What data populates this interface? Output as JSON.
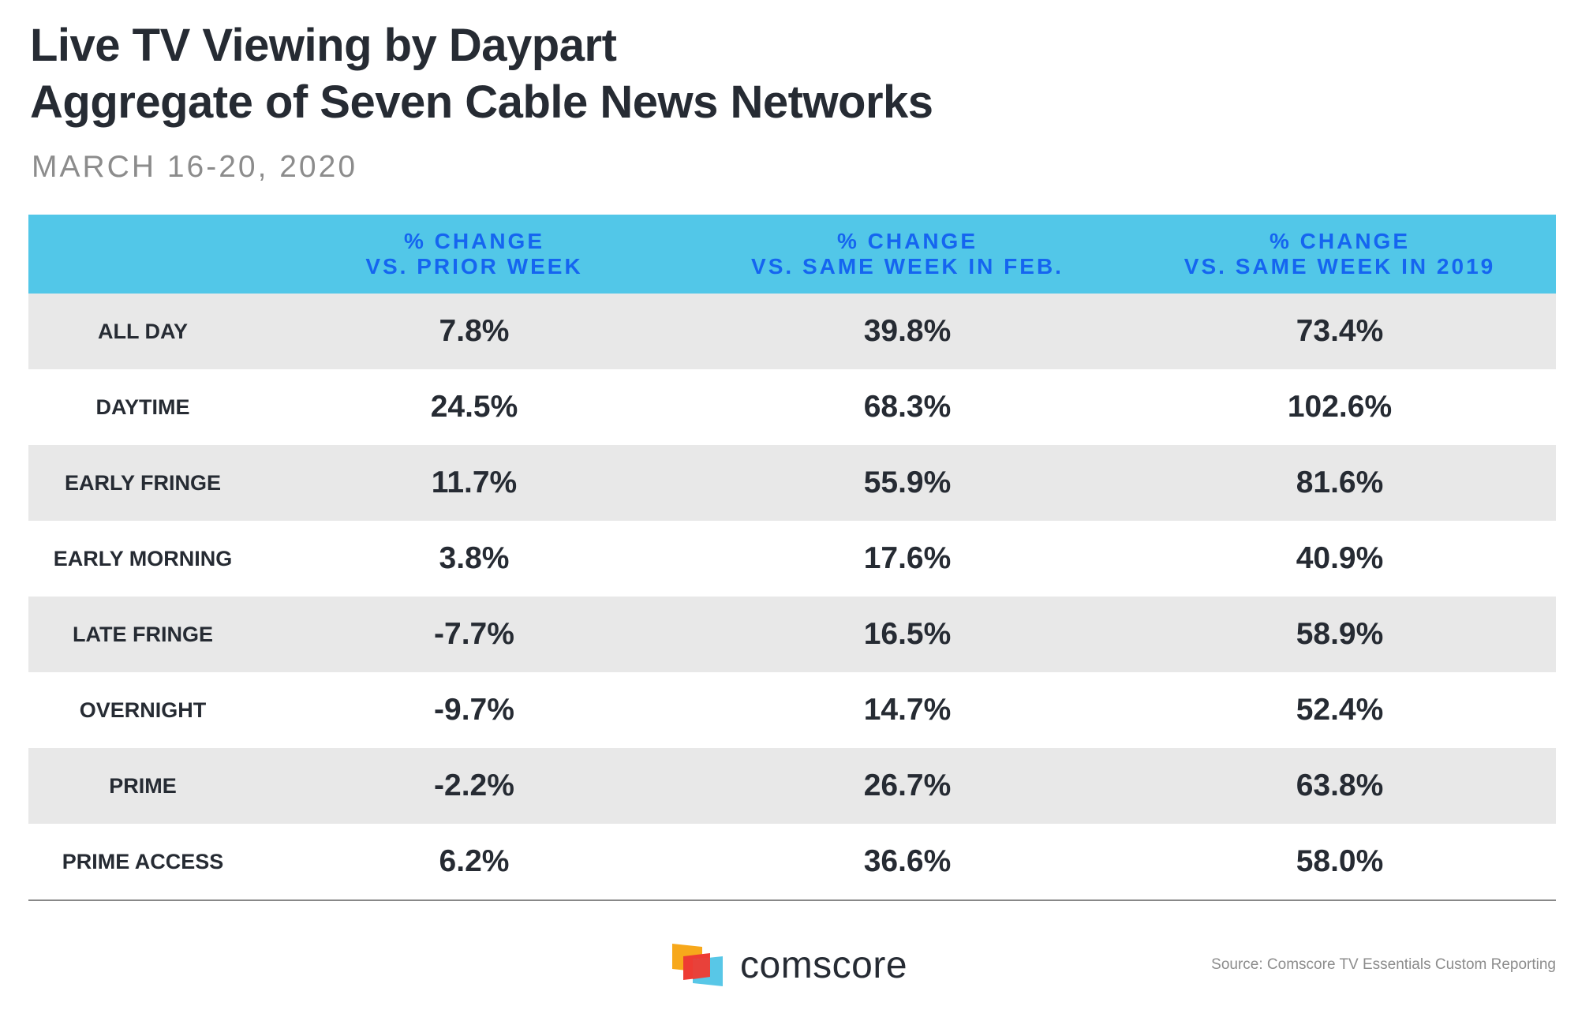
{
  "title": {
    "line1": "Live TV Viewing by Daypart",
    "line2": "Aggregate of Seven Cable News Networks"
  },
  "subtitle": "MARCH 16-20, 2020",
  "chart_data": {
    "type": "table",
    "columns": [
      "",
      "% CHANGE VS. PRIOR WEEK",
      "% CHANGE VS. SAME WEEK IN FEB.",
      "% CHANGE VS. SAME WEEK IN 2019"
    ],
    "header": {
      "c1": {
        "line1": "% CHANGE",
        "line2": "VS. PRIOR WEEK"
      },
      "c2": {
        "line1": "% CHANGE",
        "line2": "VS. SAME WEEK IN FEB."
      },
      "c3": {
        "line1": "% CHANGE",
        "line2": "VS. SAME WEEK IN 2019"
      }
    },
    "rows": [
      {
        "label": "ALL DAY",
        "prior_week": "7.8%",
        "same_week_feb": "39.8%",
        "same_week_2019": "73.4%"
      },
      {
        "label": "DAYTIME",
        "prior_week": "24.5%",
        "same_week_feb": "68.3%",
        "same_week_2019": "102.6%"
      },
      {
        "label": "EARLY FRINGE",
        "prior_week": "11.7%",
        "same_week_feb": "55.9%",
        "same_week_2019": "81.6%"
      },
      {
        "label": "EARLY MORNING",
        "prior_week": "3.8%",
        "same_week_feb": "17.6%",
        "same_week_2019": "40.9%"
      },
      {
        "label": "LATE FRINGE",
        "prior_week": "-7.7%",
        "same_week_feb": "16.5%",
        "same_week_2019": "58.9%"
      },
      {
        "label": "OVERNIGHT",
        "prior_week": "-9.7%",
        "same_week_feb": "14.7%",
        "same_week_2019": "52.4%"
      },
      {
        "label": "PRIME",
        "prior_week": "-2.2%",
        "same_week_feb": "26.7%",
        "same_week_2019": "63.8%"
      },
      {
        "label": "PRIME ACCESS",
        "prior_week": "6.2%",
        "same_week_feb": "36.6%",
        "same_week_2019": "58.0%"
      }
    ]
  },
  "logo": {
    "text": "comscore",
    "icon": "comscore-logo-icon"
  },
  "source": "Source: Comscore TV Essentials Custom Reporting",
  "colors": {
    "header_bg": "#52c7e8",
    "header_text": "#1565f0",
    "stripe": "#e8e8e8",
    "text": "#262b33",
    "muted": "#8c8c8c"
  }
}
